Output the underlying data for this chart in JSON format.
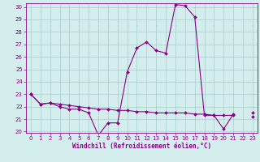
{
  "xlabel": "Windchill (Refroidissement éolien,°C)",
  "x_values": [
    0,
    1,
    2,
    3,
    4,
    5,
    6,
    7,
    8,
    9,
    10,
    11,
    12,
    13,
    14,
    15,
    16,
    17,
    18,
    19,
    20,
    21,
    22,
    23
  ],
  "y_series1": [
    23.0,
    22.2,
    22.3,
    22.0,
    21.8,
    21.8,
    21.5,
    19.7,
    20.7,
    20.7,
    24.8,
    26.7,
    27.2,
    26.5,
    26.3,
    30.2,
    30.1,
    29.2,
    21.3,
    21.3,
    20.2,
    21.4,
    null,
    21.5
  ],
  "y_series2": [
    23.0,
    22.2,
    22.3,
    22.2,
    22.1,
    22.0,
    21.9,
    21.8,
    21.8,
    21.7,
    21.7,
    21.6,
    21.6,
    21.5,
    21.5,
    21.5,
    21.5,
    21.4,
    21.4,
    21.3,
    21.3,
    21.3,
    null,
    21.2
  ],
  "ylim": [
    19.9,
    30.3
  ],
  "xlim": [
    -0.5,
    23.5
  ],
  "yticks": [
    20,
    21,
    22,
    23,
    24,
    25,
    26,
    27,
    28,
    29,
    30
  ],
  "xticks": [
    0,
    1,
    2,
    3,
    4,
    5,
    6,
    7,
    8,
    9,
    10,
    11,
    12,
    13,
    14,
    15,
    16,
    17,
    18,
    19,
    20,
    21,
    22,
    23
  ],
  "line_color": "#880088",
  "bg_color": "#d4eeee",
  "grid_color": "#aacccc",
  "marker": "D",
  "markersize": 2.0,
  "linewidth": 0.8,
  "tick_fontsize": 5.0,
  "xlabel_fontsize": 5.5
}
